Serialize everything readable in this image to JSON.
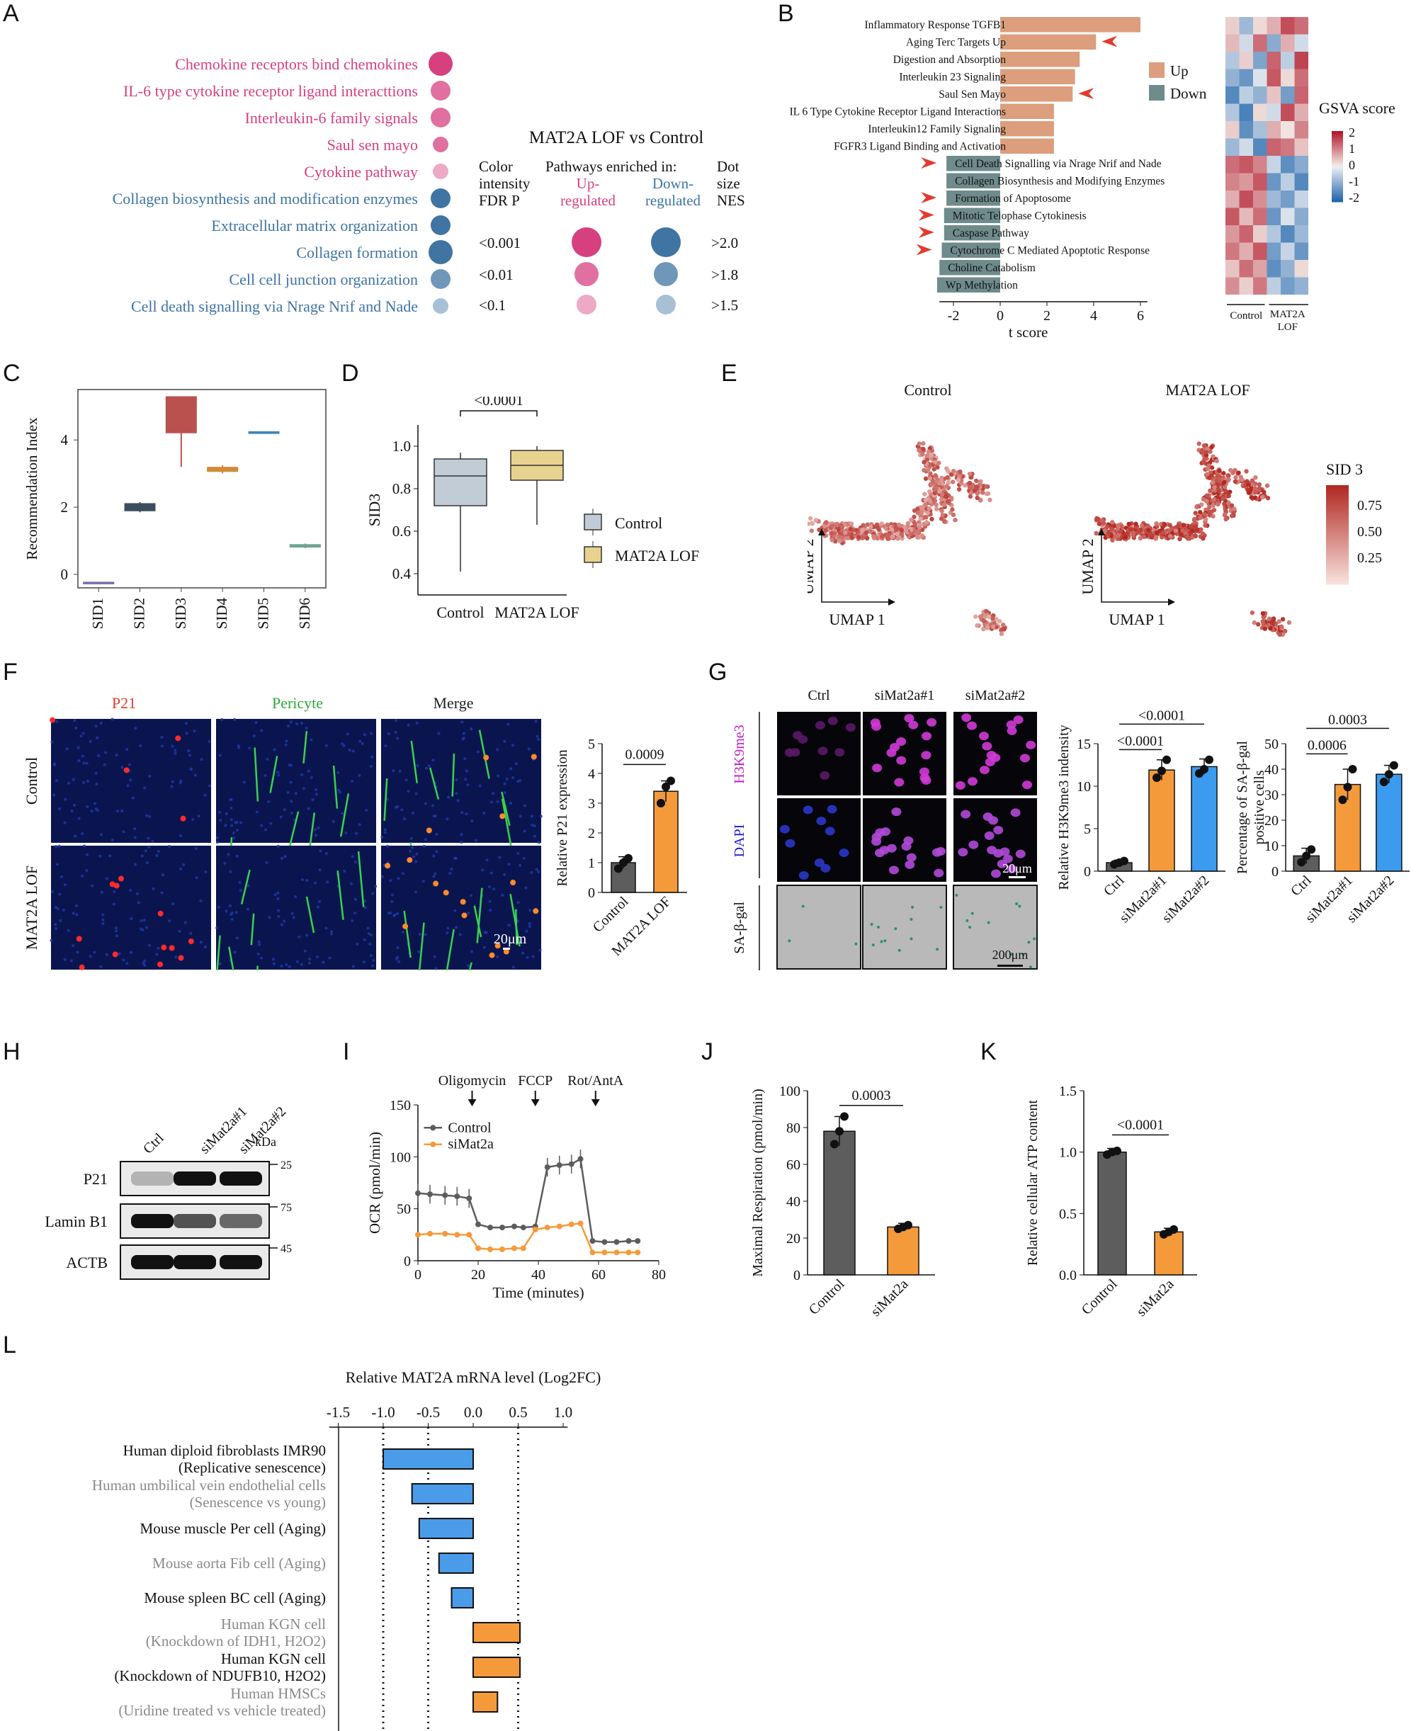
{
  "panel_labels": [
    "A",
    "B",
    "C",
    "D",
    "E",
    "F",
    "G",
    "H",
    "I",
    "J",
    "K",
    "L"
  ],
  "panel_A": {
    "pathways": [
      {
        "name": "Chemokine receptors bind chemokines",
        "dir": "up",
        "fdr": "<0.001",
        "nes": ">2.0"
      },
      {
        "name": "IL-6 type cytokine receptor ligand interacttions",
        "dir": "up",
        "fdr": "<0.01",
        "nes": ">1.8"
      },
      {
        "name": "Interleukin-6 family signals",
        "dir": "up",
        "fdr": "<0.01",
        "nes": ">1.8"
      },
      {
        "name": "Saul sen mayo",
        "dir": "up",
        "fdr": "<0.01",
        "nes": ">1.5"
      },
      {
        "name": "Cytokine pathway",
        "dir": "up",
        "fdr": "<0.1",
        "nes": ">1.5"
      },
      {
        "name": "Collagen biosynthesis and modification enzymes",
        "dir": "down",
        "fdr": "<0.001",
        "nes": ">1.8"
      },
      {
        "name": "Extracellular matrix organization",
        "dir": "down",
        "fdr": "<0.001",
        "nes": ">1.8"
      },
      {
        "name": "Collagen formation",
        "dir": "down",
        "fdr": "<0.001",
        "nes": ">2.0"
      },
      {
        "name": "Cell cell junction organization",
        "dir": "down",
        "fdr": "<0.01",
        "nes": ">1.8"
      },
      {
        "name": "Cell death signalling via Nrage Nrif and Nade",
        "dir": "down",
        "fdr": "<0.1",
        "nes": ">1.5"
      }
    ],
    "legend_title": "MAT2A LOF vs Control",
    "col1": [
      "Color",
      "intensity",
      "FDR P"
    ],
    "col2": "Pathways enriched in:",
    "col2_up": [
      "Up-",
      "regulated"
    ],
    "col2_down": [
      "Down-",
      "regulated"
    ],
    "col3": [
      "Dot",
      "size",
      "NES"
    ],
    "fdr_levels": [
      "<0.001",
      "<0.01",
      "<0.1"
    ],
    "nes_levels": [
      ">2.0",
      ">1.8",
      ">1.5"
    ],
    "colors": {
      "up": "#d6407f",
      "down": "#3f74a3"
    }
  },
  "panel_B": {
    "up_label": "Up",
    "down_label": "Down",
    "xlabel": "t score",
    "xticks": [
      "-2",
      "0",
      "2",
      "4",
      "6"
    ],
    "heat_title": "GSVA score",
    "heat_ticks": [
      "2",
      "1",
      "0",
      "-1",
      "-2"
    ],
    "heat_groups": [
      "Control",
      "MAT2A LOF"
    ],
    "bars": [
      {
        "name": "Inflammatory Response TGFB1",
        "t": 6.0,
        "arrow": false
      },
      {
        "name": "Aging Terc Targets Up",
        "t": 4.1,
        "arrow": true
      },
      {
        "name": "Digestion and Absorption",
        "t": 3.4,
        "arrow": false
      },
      {
        "name": "Interleukin 23 Signaling",
        "t": 3.2,
        "arrow": false
      },
      {
        "name": "Saul Sen Mayo",
        "t": 3.1,
        "arrow": true
      },
      {
        "name": "IL 6 Type Cytokine Receptor Ligand Interactions",
        "t": 2.3,
        "arrow": false
      },
      {
        "name": "Interleukin12 Family Signaling",
        "t": 2.3,
        "arrow": false
      },
      {
        "name": "FGFR3 Ligand Binding and Activation",
        "t": 2.3,
        "arrow": false
      },
      {
        "name": "Cell Death Signalling via Nrage Nrif and Nade",
        "t": -2.3,
        "arrow": true
      },
      {
        "name": "Collagen Biosynthesis and Modifying Enzymes",
        "t": -2.3,
        "arrow": false
      },
      {
        "name": "Formation of Apoptosome",
        "t": -2.3,
        "arrow": true
      },
      {
        "name": "Mitotic Telophase Cytokinesis",
        "t": -2.4,
        "arrow": true
      },
      {
        "name": "Caspase Pathway",
        "t": -2.4,
        "arrow": true
      },
      {
        "name": "Cytochrome C Mediated Apoptotic Response",
        "t": -2.5,
        "arrow": true
      },
      {
        "name": "Choline Catabolism",
        "t": -2.6,
        "arrow": false
      },
      {
        "name": "Wp Methylation",
        "t": -2.7,
        "arrow": false
      }
    ],
    "heatmap": [
      [
        0.3,
        -0.8,
        0.2,
        0.6,
        1.5,
        1.2
      ],
      [
        0.5,
        -0.3,
        1.2,
        -1.0,
        0.6,
        -0.3
      ],
      [
        -0.6,
        0.3,
        -1.1,
        1.3,
        -0.5,
        1.6
      ],
      [
        -0.9,
        -1.3,
        -0.2,
        1.4,
        0.2,
        1.2
      ],
      [
        -1.5,
        -0.5,
        -0.9,
        0.4,
        -1.2,
        1.3
      ],
      [
        -0.6,
        -1.6,
        0.2,
        -0.3,
        1.5,
        0.6
      ],
      [
        0.3,
        -1.4,
        -0.7,
        0.6,
        0.1,
        1.0
      ],
      [
        -0.8,
        -0.3,
        -1.5,
        1.3,
        1.1,
        0.4
      ],
      [
        1.2,
        1.4,
        1.0,
        -0.4,
        -1.4,
        -1.0
      ],
      [
        1.0,
        0.8,
        1.4,
        -1.3,
        -0.5,
        -1.5
      ],
      [
        0.6,
        1.5,
        0.9,
        -0.8,
        -1.2,
        -0.4
      ],
      [
        1.4,
        0.5,
        1.2,
        -1.3,
        -0.2,
        -1.0
      ],
      [
        0.8,
        1.3,
        0.3,
        -0.6,
        -1.5,
        -0.8
      ],
      [
        1.1,
        0.6,
        1.4,
        -1.2,
        -0.4,
        -1.3
      ],
      [
        0.4,
        1.2,
        0.7,
        -1.4,
        -0.9,
        0.2
      ],
      [
        0.9,
        0.3,
        1.1,
        -0.5,
        -1.2,
        -0.9
      ]
    ]
  },
  "panel_C": {
    "ylabel": "Recommendation Index",
    "yticks": [
      "0",
      "2",
      "4"
    ],
    "ymin": -0.4,
    "ymax": 5.5,
    "boxes": [
      {
        "name": "SID1",
        "q1": -0.27,
        "med": -0.25,
        "q3": -0.23,
        "lo": -0.27,
        "hi": -0.23,
        "color": "#7b6fa8"
      },
      {
        "name": "SID2",
        "q1": 1.88,
        "med": 2.0,
        "q3": 2.12,
        "lo": 1.85,
        "hi": 2.15,
        "color": "#3d4f5e"
      },
      {
        "name": "SID3",
        "q1": 4.2,
        "med": 5.2,
        "q3": 5.3,
        "lo": 3.2,
        "hi": 5.3,
        "color": "#b9514f"
      },
      {
        "name": "SID4",
        "q1": 3.05,
        "med": 3.12,
        "q3": 3.2,
        "lo": 3.0,
        "hi": 3.25,
        "color": "#d08a36"
      },
      {
        "name": "SID5",
        "q1": 4.18,
        "med": 4.22,
        "q3": 4.26,
        "lo": 4.18,
        "hi": 4.26,
        "color": "#3f86b8"
      },
      {
        "name": "SID6",
        "q1": 0.8,
        "med": 0.85,
        "q3": 0.9,
        "lo": 0.78,
        "hi": 0.92,
        "color": "#6fa593"
      }
    ]
  },
  "panel_D": {
    "ylabel": "SID3",
    "yticks": [
      "0.4",
      "0.6",
      "0.8",
      "1.0"
    ],
    "ymin": 0.3,
    "ymax": 1.1,
    "pvalue": "<0.0001",
    "groups": [
      {
        "name": "Control",
        "q1": 0.72,
        "med": 0.86,
        "q3": 0.94,
        "lo": 0.41,
        "hi": 0.97,
        "color": "#c1ccd6"
      },
      {
        "name": "MAT2A LOF",
        "q1": 0.84,
        "med": 0.91,
        "q3": 0.98,
        "lo": 0.63,
        "hi": 1.0,
        "color": "#e8d28f"
      }
    ]
  },
  "panel_E": {
    "titles": [
      "Control",
      "MAT2A LOF"
    ],
    "axis1": "UMAP 1",
    "axis2": "UMAP 2",
    "legend_title": "SID 3",
    "legend_ticks": [
      "0.75",
      "0.50",
      "0.25"
    ]
  },
  "panel_F": {
    "cols": [
      "P21",
      "Pericyte",
      "Merge"
    ],
    "rows": [
      "Control",
      "MAT2A LOF"
    ],
    "scale": "20μm",
    "ylabel": "Relative P21 expression",
    "yticks": [
      "0",
      "1",
      "2",
      "3",
      "4",
      "5"
    ],
    "pvalue": "0.0009",
    "groups": [
      "Control",
      "MAT2A LOF"
    ],
    "means": [
      1.0,
      3.4
    ],
    "sd": [
      0.2,
      0.35
    ],
    "points": [
      [
        0.8,
        1.0,
        1.15
      ],
      [
        3.0,
        3.55,
        3.75
      ]
    ]
  },
  "panel_G": {
    "cols": [
      "Ctrl",
      "siMat2a#1",
      "siMat2a#2"
    ],
    "rows": [
      "H3K9me3",
      "DAPI",
      "SA-β-gal"
    ],
    "scale1": "20μm",
    "scale2": "200μm",
    "h3k9": {
      "ylabel": "Relative H3K9me3 indensity",
      "yticks": [
        "0",
        "5",
        "10",
        "15"
      ],
      "groups": [
        "Ctrl",
        "siMat2a#1",
        "siMat2a#2"
      ],
      "means": [
        1.0,
        11.9,
        12.3
      ],
      "sd": [
        0.3,
        1.2,
        0.9
      ],
      "points": [
        [
          0.8,
          1.0,
          1.2
        ],
        [
          11.0,
          11.8,
          13.1
        ],
        [
          11.5,
          12.0,
          13.1
        ]
      ],
      "p1": "<0.0001",
      "p2": "<0.0001"
    },
    "sagal": {
      "ylabel": "Percentage of SA-β-gal positive cells",
      "yticks": [
        "0",
        "10",
        "20",
        "30",
        "40",
        "50"
      ],
      "groups": [
        "Ctrl",
        "siMat2a#1",
        "siMat2a#2"
      ],
      "means": [
        6.0,
        34.0,
        38.0
      ],
      "sd": [
        3.0,
        6.0,
        3.5
      ],
      "points": [
        [
          3.5,
          6.0,
          8.5
        ],
        [
          28.0,
          33.0,
          40.0
        ],
        [
          35.0,
          38.0,
          41.5
        ]
      ],
      "p1": "0.0006",
      "p2": "0.0003"
    }
  },
  "panel_H": {
    "lanes": [
      "Ctrl",
      "siMat2a#1",
      "siMat2a#2"
    ],
    "kda": "kDa",
    "bands": [
      "P21",
      "Lamin B1",
      "ACTB"
    ],
    "markers": [
      "25",
      "75",
      "45"
    ]
  },
  "panel_I": {
    "ylabel": "OCR (pmol/min)",
    "xlabel": "Time (minutes)",
    "yticks": [
      "0",
      "50",
      "100",
      "150"
    ],
    "xticks": [
      "0",
      "20",
      "40",
      "60",
      "80"
    ],
    "drugs": [
      "Oligomycin",
      "FCCP",
      "Rot/AntA"
    ],
    "legend": [
      "Control",
      "siMat2a"
    ],
    "x": [
      0,
      4,
      9,
      13,
      17,
      20,
      24,
      28,
      32,
      35,
      39,
      43,
      47,
      51,
      54,
      58,
      62,
      66,
      70,
      73
    ],
    "control": [
      65,
      64,
      63,
      62,
      60,
      35,
      32,
      32,
      33,
      32,
      33,
      90,
      92,
      93,
      98,
      19,
      18,
      18,
      19,
      19
    ],
    "simat2a": [
      25,
      26,
      26,
      25,
      25,
      12,
      11,
      11,
      12,
      12,
      30,
      32,
      33,
      35,
      36,
      8,
      8,
      8,
      8,
      8
    ]
  },
  "panel_J": {
    "ylabel": "Maximal Respiration (pmol/min)",
    "yticks": [
      "0",
      "20",
      "40",
      "60",
      "80",
      "100"
    ],
    "groups": [
      "Control",
      "siMat2a"
    ],
    "means": [
      78,
      26
    ],
    "sd": [
      8,
      2
    ],
    "points": [
      [
        71,
        78,
        86
      ],
      [
        25,
        26,
        27
      ]
    ],
    "pvalue": "0.0003"
  },
  "panel_K": {
    "ylabel": "Relative cellular ATP content",
    "yticks": [
      "0.0",
      "0.5",
      "1.0",
      "1.5"
    ],
    "groups": [
      "Control",
      "siMat2a"
    ],
    "means": [
      1.0,
      0.35
    ],
    "sd": [
      0.03,
      0.03
    ],
    "points": [
      [
        0.98,
        1.0,
        1.01
      ],
      [
        0.33,
        0.35,
        0.37
      ]
    ],
    "pvalue": "<0.0001"
  },
  "panel_L": {
    "title": "Relative MAT2A mRNA level (Log2FC)",
    "xticks": [
      "-1.5",
      "-1.0",
      "-0.5",
      "0.0",
      "0.5",
      "1.0"
    ],
    "rows": [
      {
        "label": [
          "Human diploid fibroblasts IMR90",
          "(Replicative senescence)"
        ],
        "value": -1.0,
        "gray": false
      },
      {
        "label": [
          "Human umbilical vein endothelial cells",
          "(Senescence vs young)"
        ],
        "value": -0.68,
        "gray": true
      },
      {
        "label": [
          "Mouse muscle Per cell (Aging)"
        ],
        "value": -0.6,
        "gray": false
      },
      {
        "label": [
          "Mouse aorta Fib cell (Aging)"
        ],
        "value": -0.38,
        "gray": true
      },
      {
        "label": [
          "Mouse spleen BC cell (Aging)"
        ],
        "value": -0.24,
        "gray": false
      },
      {
        "label": [
          "Human KGN cell",
          "(Knockdown of IDH1, H2O2)"
        ],
        "value": 0.52,
        "gray": true
      },
      {
        "label": [
          "Human KGN cell",
          "(Knockdown of NDUFB10, H2O2)"
        ],
        "value": 0.52,
        "gray": false
      },
      {
        "label": [
          "Human HMSCs",
          "(Uridine treated vs vehicle treated)"
        ],
        "value": 0.27,
        "gray": true
      }
    ]
  }
}
